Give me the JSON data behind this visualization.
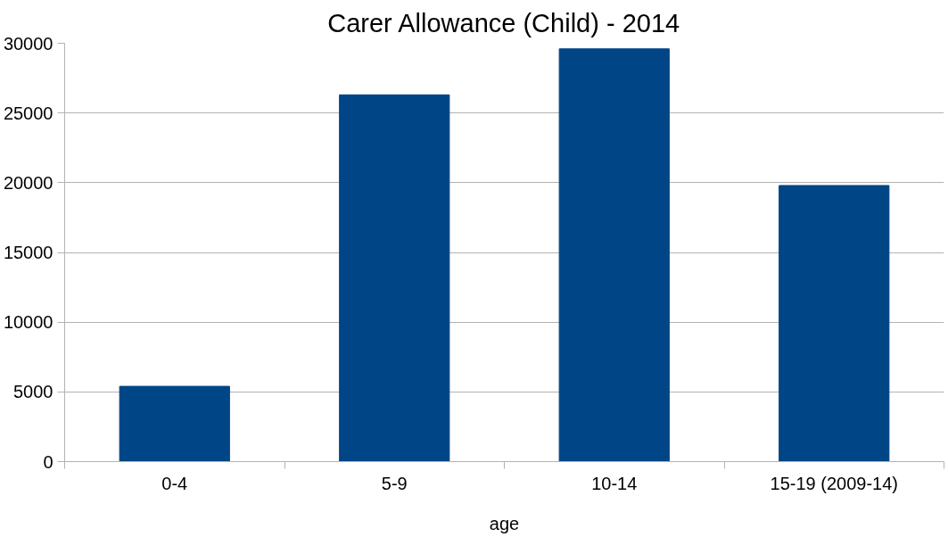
{
  "chart_data": {
    "type": "bar",
    "title": "Carer Allowance (Child) - 2014",
    "xlabel": "age",
    "categories": [
      "0-4",
      "5-9",
      "10-14",
      "15-19 (2009-14)"
    ],
    "values": [
      5400,
      26300,
      29600,
      19800
    ],
    "color": "#004586",
    "ylim": [
      0,
      30000
    ],
    "yticks": [
      0,
      5000,
      10000,
      15000,
      20000,
      25000,
      30000
    ],
    "grid": "y"
  }
}
